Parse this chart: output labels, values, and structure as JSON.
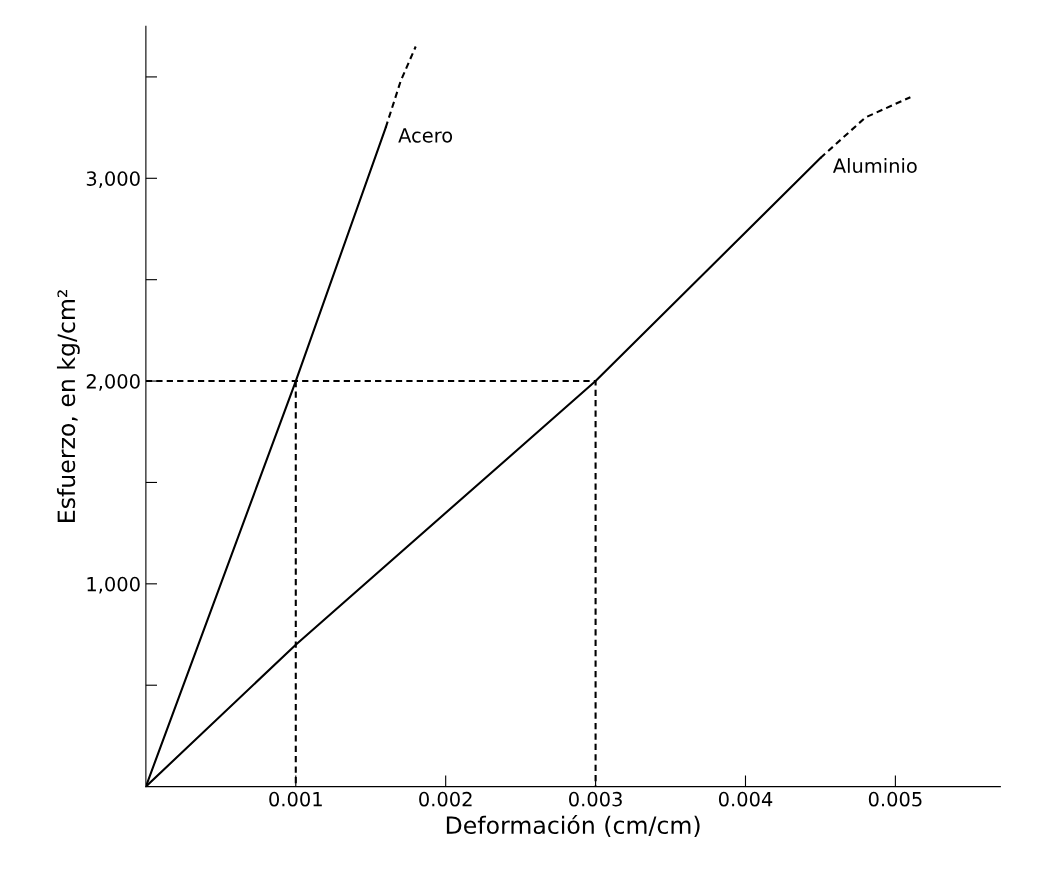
{
  "chart_data": {
    "type": "line",
    "xlabel": "Deformación (cm/cm)",
    "ylabel": "Esfuerzo, en kg/cm²",
    "xlim": [
      0,
      0.0057
    ],
    "ylim": [
      0,
      3750
    ],
    "xticks": [
      {
        "value": 0.001,
        "label": "0.001"
      },
      {
        "value": 0.002,
        "label": "0.002"
      },
      {
        "value": 0.003,
        "label": "0.003"
      },
      {
        "value": 0.004,
        "label": "0.004"
      },
      {
        "value": 0.005,
        "label": "0.005"
      }
    ],
    "yticks": [
      {
        "value": 500,
        "label": null
      },
      {
        "value": 1000,
        "label": "1,000"
      },
      {
        "value": 1500,
        "label": null
      },
      {
        "value": 2000,
        "label": "2,000"
      },
      {
        "value": 2500,
        "label": null
      },
      {
        "value": 3000,
        "label": "3,000"
      },
      {
        "value": 3500,
        "label": null
      }
    ],
    "grid": false,
    "legend": false,
    "marker": "none",
    "series": [
      {
        "name": "Acero",
        "color": "#000000",
        "line_style": "solid",
        "x": [
          0,
          0.001,
          0.0016
        ],
        "values": [
          0,
          2000,
          3250
        ]
      },
      {
        "color": "#000000",
        "line_style": "dashed",
        "x": [
          0.0016,
          0.0017,
          0.0018
        ],
        "values": [
          3250,
          3480,
          3650
        ]
      },
      {
        "name": "Aluminio",
        "color": "#000000",
        "line_style": "solid",
        "x": [
          0,
          0.001,
          0.003,
          0.0045
        ],
        "values": [
          0,
          700,
          2000,
          3100
        ]
      },
      {
        "color": "#000000",
        "line_style": "dashed",
        "x": [
          0.0045,
          0.0048,
          0.0051
        ],
        "values": [
          3100,
          3300,
          3400
        ]
      },
      {
        "color": "#000000",
        "line_style": "dashed",
        "x": [
          0,
          0.003,
          0.003
        ],
        "values": [
          2000,
          2000,
          0
        ]
      },
      {
        "color": "#000000",
        "line_style": "dashed",
        "x": [
          0.001,
          0.001
        ],
        "values": [
          2000,
          0
        ]
      }
    ]
  }
}
